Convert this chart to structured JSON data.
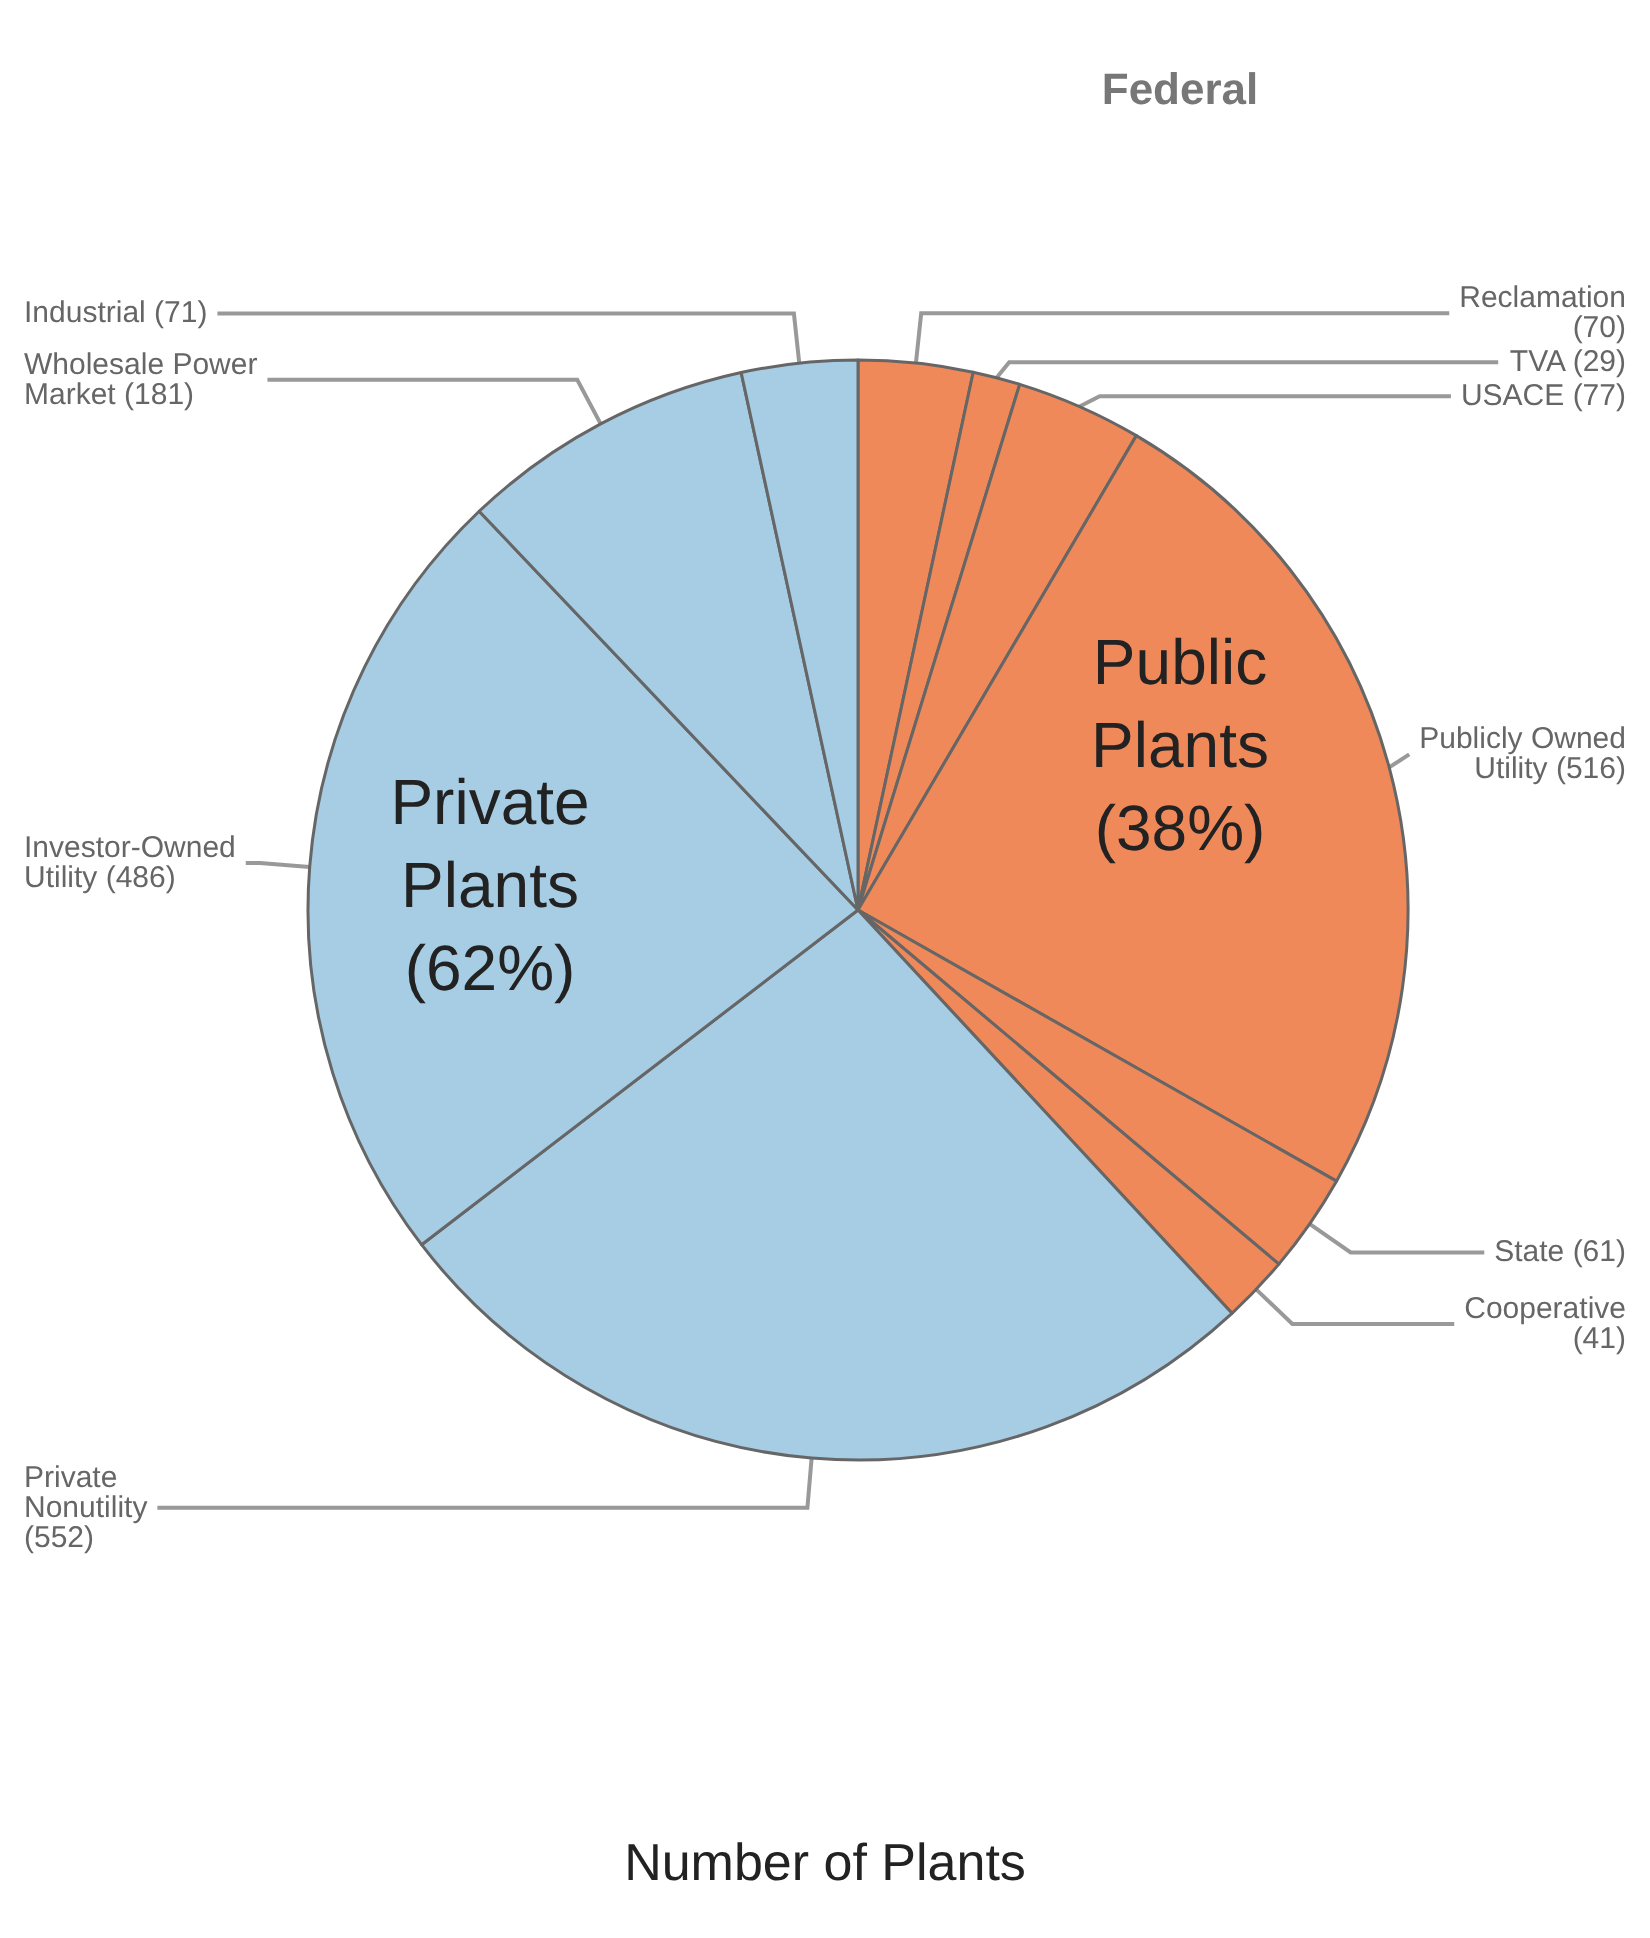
{
  "chart_data": {
    "type": "pie",
    "title": "Number of Plants",
    "categories": [
      "Reclamation",
      "TVA",
      "USACE",
      "Publicly Owned Utility",
      "State",
      "Cooperative",
      "Private Nonutility",
      "Investor-Owned Utility",
      "Wholesale Power Market",
      "Industrial"
    ],
    "values": [
      70,
      29,
      77,
      516,
      61,
      41,
      552,
      486,
      181,
      71
    ],
    "colors": [
      "#f0895a",
      "#f0895a",
      "#f0895a",
      "#f0895a",
      "#f0895a",
      "#f0895a",
      "#a6cde3",
      "#a6cde3",
      "#a6cde3",
      "#a6cde3"
    ],
    "value_labels": [
      "(70)",
      "(29)",
      "(77)",
      "(516)",
      "(61)",
      "(41)",
      "(552)",
      "(486)",
      "(181)",
      "(71)"
    ],
    "annotations": [
      "Federal",
      "Public Plants (38%)",
      "Private Plants (62%)"
    ],
    "legend": false
  }
}
